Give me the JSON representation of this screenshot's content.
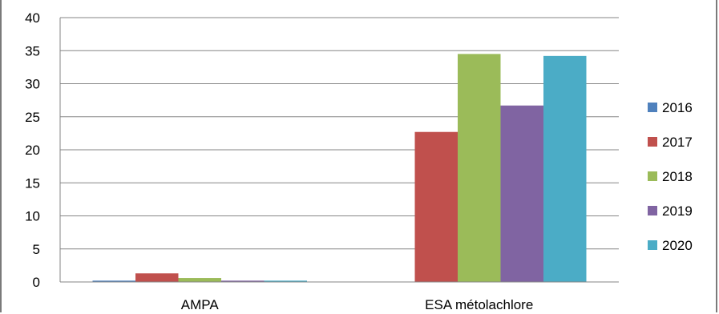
{
  "chart_data": {
    "type": "bar",
    "title": "",
    "xlabel": "",
    "ylabel": "",
    "categories": [
      "AMPA",
      "ESA métolachlore"
    ],
    "ylim": [
      0,
      40
    ],
    "yticks": [
      0,
      5,
      10,
      15,
      20,
      25,
      30,
      35,
      40
    ],
    "grid": true,
    "legend_position": "right",
    "series": [
      {
        "name": "2016",
        "color": "#4f81bd",
        "values": [
          0.2,
          0
        ]
      },
      {
        "name": "2017",
        "color": "#c0504d",
        "values": [
          1.3,
          22.7
        ]
      },
      {
        "name": "2018",
        "color": "#9bbb59",
        "values": [
          0.6,
          34.5
        ]
      },
      {
        "name": "2019",
        "color": "#8064a2",
        "values": [
          0.2,
          26.7
        ]
      },
      {
        "name": "2020",
        "color": "#4bacc6",
        "values": [
          0.2,
          34.2
        ]
      }
    ]
  }
}
